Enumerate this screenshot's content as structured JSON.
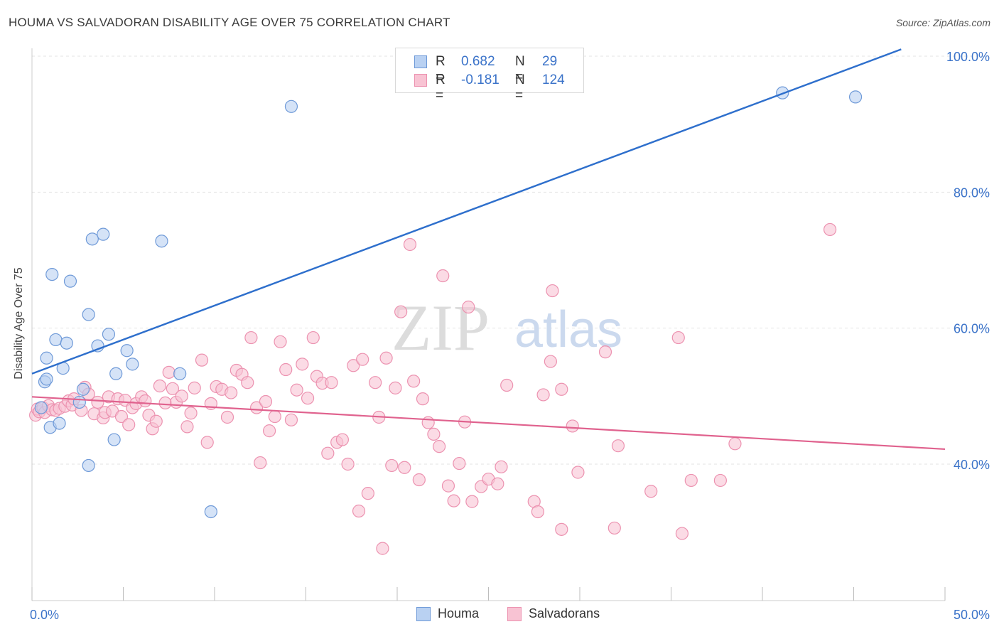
{
  "title": "HOUMA VS SALVADORAN DISABILITY AGE OVER 75 CORRELATION CHART",
  "source": "Source: ZipAtlas.com",
  "watermark": {
    "zip": "ZIP",
    "atlas": "atlas"
  },
  "legend_top": [
    {
      "r_label": "R =",
      "r_value": "0.682",
      "n_label": "N =",
      "n_value": "29"
    },
    {
      "r_label": "R =",
      "r_value": "-0.181",
      "n_label": "N =",
      "n_value": "124"
    }
  ],
  "legend_bottom": [
    {
      "label": "Houma"
    },
    {
      "label": "Salvadorans"
    }
  ],
  "colors": {
    "houma_fill": "#b9d1f2",
    "houma_stroke": "#6f9ad8",
    "houma_line": "#2e6fcc",
    "salv_fill": "#f8c3d3",
    "salv_stroke": "#ec92b0",
    "salv_line": "#e0628e",
    "tick_text": "#3b73c9",
    "grid": "#e3e3e3"
  },
  "chart_data": {
    "type": "scatter",
    "title": "HOUMA VS SALVADORAN DISABILITY AGE OVER 75 CORRELATION CHART",
    "xlabel": "",
    "ylabel": "Disability Age Over 75",
    "xlim": [
      0,
      50
    ],
    "ylim": [
      20,
      102
    ],
    "x_tick_labels": [
      {
        "value": 0,
        "label": "0.0%"
      },
      {
        "value": 50,
        "label": "50.0%"
      }
    ],
    "y_tick_labels": [
      {
        "value": 100,
        "label": "100.0%"
      },
      {
        "value": 80,
        "label": "80.0%"
      },
      {
        "value": 60,
        "label": "60.0%"
      },
      {
        "value": 40,
        "label": "40.0%"
      }
    ],
    "series": [
      {
        "name": "Houma",
        "r": 0.682,
        "n": 29,
        "trend": {
          "x": [
            0,
            47.6
          ],
          "y": [
            53.3,
            101
          ]
        },
        "points": [
          [
            0.5,
            48.3
          ],
          [
            0.7,
            52.1
          ],
          [
            0.8,
            55.6
          ],
          [
            1.0,
            45.4
          ],
          [
            1.1,
            67.9
          ],
          [
            1.3,
            58.3
          ],
          [
            1.5,
            46.0
          ],
          [
            1.7,
            54.1
          ],
          [
            1.9,
            57.8
          ],
          [
            2.1,
            66.9
          ],
          [
            2.6,
            49.1
          ],
          [
            2.8,
            51.0
          ],
          [
            3.1,
            62.0
          ],
          [
            3.3,
            73.1
          ],
          [
            3.6,
            57.4
          ],
          [
            3.9,
            73.8
          ],
          [
            4.2,
            59.1
          ],
          [
            4.6,
            53.3
          ],
          [
            4.5,
            43.6
          ],
          [
            5.2,
            56.7
          ],
          [
            5.5,
            54.7
          ],
          [
            7.1,
            72.8
          ],
          [
            8.1,
            53.3
          ],
          [
            9.8,
            33.0
          ],
          [
            14.2,
            92.6
          ],
          [
            3.1,
            39.8
          ],
          [
            0.8,
            52.5
          ],
          [
            41.1,
            94.6
          ],
          [
            45.1,
            94.0
          ]
        ]
      },
      {
        "name": "Salvadorans",
        "r": -0.181,
        "n": 124,
        "trend": {
          "x": [
            0,
            50
          ],
          "y": [
            49.9,
            42.2
          ]
        },
        "points": [
          [
            0.2,
            47.2
          ],
          [
            0.3,
            48.1
          ],
          [
            0.4,
            47.7
          ],
          [
            0.6,
            48.3
          ],
          [
            0.7,
            47.6
          ],
          [
            0.9,
            48.6
          ],
          [
            1.1,
            48.0
          ],
          [
            1.3,
            47.9
          ],
          [
            1.5,
            48.2
          ],
          [
            1.8,
            48.5
          ],
          [
            2.0,
            49.3
          ],
          [
            2.2,
            48.7
          ],
          [
            2.3,
            49.6
          ],
          [
            2.7,
            47.9
          ],
          [
            2.9,
            51.3
          ],
          [
            3.1,
            50.3
          ],
          [
            3.4,
            47.4
          ],
          [
            3.6,
            49.1
          ],
          [
            3.9,
            46.8
          ],
          [
            4.0,
            47.6
          ],
          [
            4.2,
            49.9
          ],
          [
            4.4,
            47.8
          ],
          [
            4.7,
            49.6
          ],
          [
            4.9,
            47.0
          ],
          [
            5.1,
            49.4
          ],
          [
            5.3,
            45.8
          ],
          [
            5.5,
            48.3
          ],
          [
            5.7,
            48.9
          ],
          [
            6.0,
            49.9
          ],
          [
            6.2,
            49.3
          ],
          [
            6.4,
            47.2
          ],
          [
            6.6,
            45.2
          ],
          [
            6.8,
            46.3
          ],
          [
            7.0,
            51.5
          ],
          [
            7.3,
            49.0
          ],
          [
            7.5,
            53.5
          ],
          [
            7.7,
            51.1
          ],
          [
            7.9,
            49.1
          ],
          [
            8.2,
            50.0
          ],
          [
            8.5,
            45.5
          ],
          [
            8.7,
            47.5
          ],
          [
            8.9,
            51.2
          ],
          [
            9.3,
            55.3
          ],
          [
            9.6,
            43.2
          ],
          [
            9.8,
            48.9
          ],
          [
            10.1,
            51.4
          ],
          [
            10.4,
            51.0
          ],
          [
            10.7,
            46.9
          ],
          [
            10.9,
            50.5
          ],
          [
            11.2,
            53.8
          ],
          [
            11.5,
            53.2
          ],
          [
            11.8,
            52.0
          ],
          [
            12.0,
            58.6
          ],
          [
            12.3,
            48.3
          ],
          [
            12.5,
            40.2
          ],
          [
            12.8,
            49.2
          ],
          [
            13.0,
            44.9
          ],
          [
            13.3,
            47.0
          ],
          [
            13.6,
            58.0
          ],
          [
            13.9,
            53.9
          ],
          [
            14.2,
            46.5
          ],
          [
            14.5,
            50.9
          ],
          [
            14.8,
            54.7
          ],
          [
            15.1,
            49.7
          ],
          [
            15.4,
            58.6
          ],
          [
            15.6,
            52.9
          ],
          [
            15.9,
            51.9
          ],
          [
            16.2,
            41.6
          ],
          [
            16.4,
            52.0
          ],
          [
            16.7,
            43.2
          ],
          [
            17.0,
            43.6
          ],
          [
            17.3,
            40.0
          ],
          [
            17.6,
            54.5
          ],
          [
            17.9,
            33.1
          ],
          [
            18.1,
            55.4
          ],
          [
            18.4,
            35.7
          ],
          [
            18.8,
            52.0
          ],
          [
            19.0,
            46.9
          ],
          [
            19.2,
            27.6
          ],
          [
            19.4,
            55.6
          ],
          [
            19.7,
            39.8
          ],
          [
            19.9,
            51.2
          ],
          [
            20.2,
            62.4
          ],
          [
            20.4,
            39.5
          ],
          [
            20.7,
            72.3
          ],
          [
            20.9,
            52.2
          ],
          [
            21.2,
            37.7
          ],
          [
            21.4,
            49.6
          ],
          [
            21.7,
            46.1
          ],
          [
            22.0,
            44.4
          ],
          [
            22.3,
            42.6
          ],
          [
            22.5,
            67.7
          ],
          [
            22.8,
            36.8
          ],
          [
            23.1,
            34.6
          ],
          [
            23.4,
            40.1
          ],
          [
            23.7,
            46.2
          ],
          [
            23.9,
            63.1
          ],
          [
            24.1,
            34.5
          ],
          [
            24.6,
            36.7
          ],
          [
            25.0,
            37.8
          ],
          [
            25.5,
            37.1
          ],
          [
            25.7,
            39.6
          ],
          [
            26.0,
            51.6
          ],
          [
            27.5,
            34.5
          ],
          [
            27.7,
            33.0
          ],
          [
            28.0,
            50.2
          ],
          [
            28.4,
            55.1
          ],
          [
            28.5,
            65.5
          ],
          [
            29.0,
            30.4
          ],
          [
            29.0,
            51.0
          ],
          [
            29.6,
            45.6
          ],
          [
            29.9,
            38.8
          ],
          [
            31.4,
            56.5
          ],
          [
            31.9,
            30.6
          ],
          [
            32.1,
            42.7
          ],
          [
            33.9,
            36.0
          ],
          [
            35.4,
            58.6
          ],
          [
            35.6,
            29.8
          ],
          [
            36.1,
            37.6
          ],
          [
            37.7,
            37.6
          ],
          [
            38.5,
            43.0
          ],
          [
            43.7,
            74.5
          ]
        ]
      }
    ]
  }
}
